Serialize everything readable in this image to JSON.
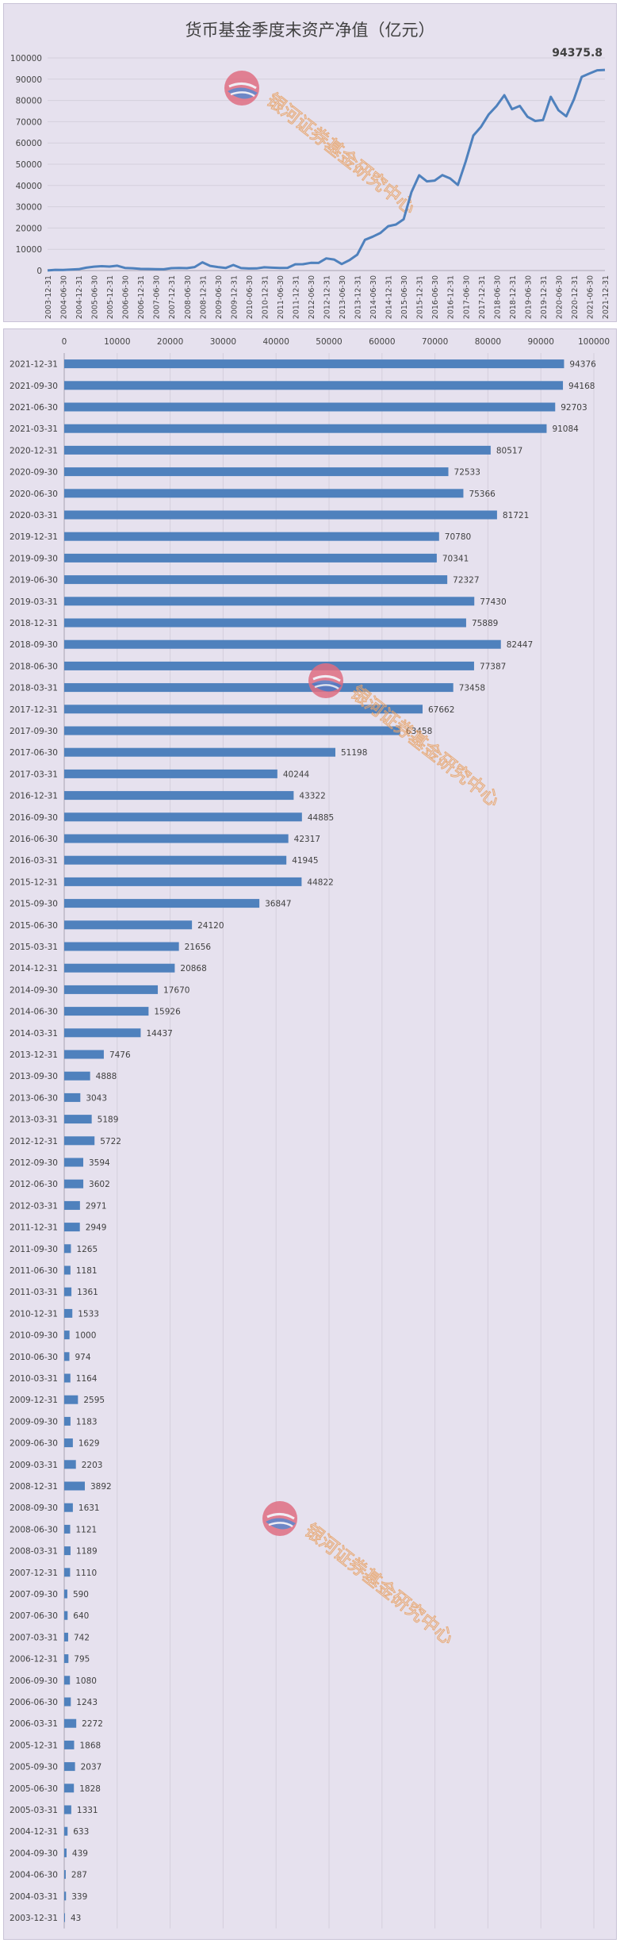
{
  "chart_data": [
    {
      "type": "line",
      "title": "货币基金季度末资产净值（亿元）",
      "annotation": "94375.8",
      "ylim": [
        0,
        100000
      ],
      "yticks": [
        0,
        10000,
        20000,
        30000,
        40000,
        50000,
        60000,
        70000,
        80000,
        90000,
        100000
      ],
      "x": [
        "2003-12-31",
        "2004-03-31",
        "2004-06-30",
        "2004-09-30",
        "2004-12-31",
        "2005-03-31",
        "2005-06-30",
        "2005-09-30",
        "2005-12-31",
        "2006-03-31",
        "2006-06-30",
        "2006-09-30",
        "2006-12-31",
        "2007-03-31",
        "2007-06-30",
        "2007-09-30",
        "2007-12-31",
        "2008-03-31",
        "2008-06-30",
        "2008-09-30",
        "2008-12-31",
        "2009-03-31",
        "2009-06-30",
        "2009-09-30",
        "2009-12-31",
        "2010-03-31",
        "2010-06-30",
        "2010-09-30",
        "2010-12-31",
        "2011-03-31",
        "2011-06-30",
        "2011-09-30",
        "2011-12-31",
        "2012-03-31",
        "2012-06-30",
        "2012-09-30",
        "2012-12-31",
        "2013-03-31",
        "2013-06-30",
        "2013-09-30",
        "2013-12-31",
        "2014-03-31",
        "2014-06-30",
        "2014-09-30",
        "2014-12-31",
        "2015-03-31",
        "2015-06-30",
        "2015-09-30",
        "2015-12-31",
        "2016-03-31",
        "2016-06-30",
        "2016-09-30",
        "2016-12-31",
        "2017-03-31",
        "2017-06-30",
        "2017-09-30",
        "2017-12-31",
        "2018-03-31",
        "2018-06-30",
        "2018-09-30",
        "2018-12-31",
        "2019-03-31",
        "2019-06-30",
        "2019-09-30",
        "2019-12-31",
        "2020-03-31",
        "2020-06-30",
        "2020-09-30",
        "2020-12-31",
        "2021-03-31",
        "2021-06-30",
        "2021-09-30",
        "2021-12-31"
      ],
      "xtick_labels": [
        "2003-12-31",
        "2004-06-30",
        "2004-12-31",
        "2005-06-30",
        "2005-12-31",
        "2006-06-30",
        "2006-12-31",
        "2007-06-30",
        "2007-12-31",
        "2008-06-30",
        "2008-12-31",
        "2009-06-30",
        "2009-12-31",
        "2010-06-30",
        "2010-12-31",
        "2011-06-30",
        "2011-12-31",
        "2012-06-30",
        "2012-12-31",
        "2013-06-30",
        "2013-12-31",
        "2014-06-30",
        "2014-12-31",
        "2015-06-30",
        "2015-12-31",
        "2016-06-30",
        "2016-12-31",
        "2017-06-30",
        "2017-12-31",
        "2018-06-30",
        "2018-12-31",
        "2019-06-30",
        "2019-12-31",
        "2020-06-30",
        "2020-12-31",
        "2021-06-30",
        "2021-12-31"
      ],
      "values": [
        43,
        339,
        287,
        439,
        633,
        1331,
        1828,
        2037,
        1868,
        2272,
        1243,
        1080,
        795,
        742,
        640,
        590,
        1110,
        1189,
        1121,
        1631,
        3892,
        2203,
        1629,
        1183,
        2595,
        1164,
        974,
        1000,
        1533,
        1361,
        1181,
        1265,
        2949,
        2971,
        3602,
        3594,
        5722,
        5189,
        3043,
        4888,
        7476,
        14437,
        15926,
        17670,
        20868,
        21656,
        24120,
        36847,
        44822,
        41945,
        42317,
        44885,
        43322,
        40244,
        51198,
        63458,
        67662,
        73458,
        77387,
        82447,
        75889,
        77430,
        72327,
        70341,
        70780,
        81721,
        75366,
        72533,
        80517,
        91084,
        92703,
        94168,
        94376
      ],
      "color": "#4f81bd",
      "watermark": "银河证券基金研究中心"
    },
    {
      "type": "bar",
      "orientation": "horizontal",
      "xlim": [
        0,
        100000
      ],
      "xticks": [
        0,
        10000,
        20000,
        30000,
        40000,
        50000,
        60000,
        70000,
        80000,
        90000,
        100000
      ],
      "categories": [
        "2021-12-31",
        "2021-09-30",
        "2021-06-30",
        "2021-03-31",
        "2020-12-31",
        "2020-09-30",
        "2020-06-30",
        "2020-03-31",
        "2019-12-31",
        "2019-09-30",
        "2019-06-30",
        "2019-03-31",
        "2018-12-31",
        "2018-09-30",
        "2018-06-30",
        "2018-03-31",
        "2017-12-31",
        "2017-09-30",
        "2017-06-30",
        "2017-03-31",
        "2016-12-31",
        "2016-09-30",
        "2016-06-30",
        "2016-03-31",
        "2015-12-31",
        "2015-09-30",
        "2015-06-30",
        "2015-03-31",
        "2014-12-31",
        "2014-09-30",
        "2014-06-30",
        "2014-03-31",
        "2013-12-31",
        "2013-09-30",
        "2013-06-30",
        "2013-03-31",
        "2012-12-31",
        "2012-09-30",
        "2012-06-30",
        "2012-03-31",
        "2011-12-31",
        "2011-09-30",
        "2011-06-30",
        "2011-03-31",
        "2010-12-31",
        "2010-09-30",
        "2010-06-30",
        "2010-03-31",
        "2009-12-31",
        "2009-09-30",
        "2009-06-30",
        "2009-03-31",
        "2008-12-31",
        "2008-09-30",
        "2008-06-30",
        "2008-03-31",
        "2007-12-31",
        "2007-09-30",
        "2007-06-30",
        "2007-03-31",
        "2006-12-31",
        "2006-09-30",
        "2006-06-30",
        "2006-03-31",
        "2005-12-31",
        "2005-09-30",
        "2005-06-30",
        "2005-03-31",
        "2004-12-31",
        "2004-09-30",
        "2004-06-30",
        "2004-03-31",
        "2003-12-31"
      ],
      "values": [
        94376,
        94168,
        92703,
        91084,
        80517,
        72533,
        75366,
        81721,
        70780,
        70341,
        72327,
        77430,
        75889,
        82447,
        77387,
        73458,
        67662,
        63458,
        51198,
        40244,
        43322,
        44885,
        42317,
        41945,
        44822,
        36847,
        24120,
        21656,
        20868,
        17670,
        15926,
        14437,
        7476,
        4888,
        3043,
        5189,
        5722,
        3594,
        3602,
        2971,
        2949,
        1265,
        1181,
        1361,
        1533,
        1000,
        974,
        1164,
        2595,
        1183,
        1629,
        2203,
        3892,
        1631,
        1121,
        1189,
        1110,
        590,
        640,
        742,
        795,
        1080,
        1243,
        2272,
        1868,
        2037,
        1828,
        1331,
        633,
        439,
        287,
        339,
        43
      ],
      "color": "#4f81bd",
      "watermark": "银河证券基金研究中心"
    }
  ]
}
